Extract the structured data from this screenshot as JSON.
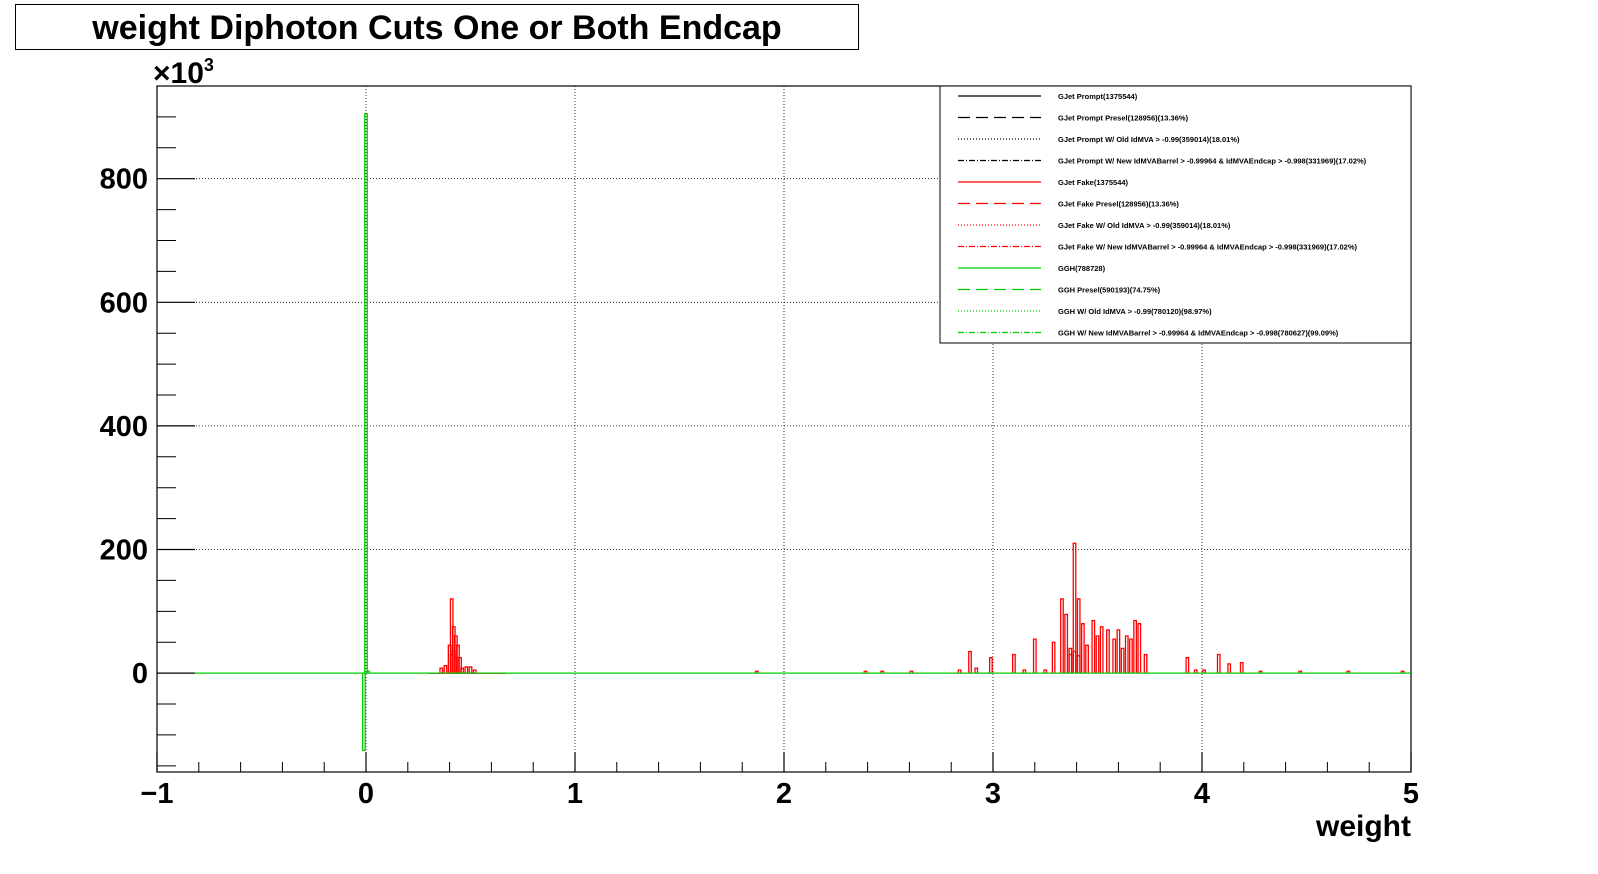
{
  "chart_data": {
    "type": "histogram",
    "title": "weight Diphoton Cuts One or Both Endcap",
    "xlabel": "weight",
    "ylabel": "",
    "y_multiplier_label": "×10",
    "y_multiplier_exponent": "3",
    "xlim": [
      -1,
      5
    ],
    "ylim": [
      -160,
      950
    ],
    "x_ticks": [
      -1,
      0,
      1,
      2,
      3,
      4,
      5
    ],
    "x_tick_labels": [
      "−1",
      "0",
      "1",
      "2",
      "3",
      "4",
      "5"
    ],
    "y_ticks": [
      0,
      200,
      400,
      600,
      800
    ],
    "y_tick_labels": [
      "0",
      "200",
      "400",
      "600",
      "800"
    ],
    "grid": true,
    "legend_position": "top-right",
    "legend": [
      {
        "label": "GJet Prompt(1375544)",
        "color": "#000000",
        "style": "solid"
      },
      {
        "label": "GJet Prompt Presel(128956)(13.36%)",
        "color": "#000000",
        "style": "dashed"
      },
      {
        "label": "GJet Prompt W/ Old IdMVA > -0.99(359014)(18.01%)",
        "color": "#000000",
        "style": "dotted"
      },
      {
        "label": "GJet Prompt W/ New IdMVABarrel > -0.99964 & IdMVAEndcap > -0.998(331969)(17.02%)",
        "color": "#000000",
        "style": "dashdot"
      },
      {
        "label": "GJet Fake(1375544)",
        "color": "#ff0000",
        "style": "solid"
      },
      {
        "label": "GJet Fake Presel(128956)(13.36%)",
        "color": "#ff0000",
        "style": "dashed"
      },
      {
        "label": "GJet Fake W/ Old IdMVA > -0.99(359014)(18.01%)",
        "color": "#ff0000",
        "style": "dotted"
      },
      {
        "label": "GJet Fake W/ New IdMVABarrel > -0.99964 & IdMVAEndcap > -0.998(331969)(17.02%)",
        "color": "#ff0000",
        "style": "dashdot"
      },
      {
        "label": "GGH(788728)",
        "color": "#00cc00",
        "style": "solid"
      },
      {
        "label": "GGH Presel(590193)(74.75%)",
        "color": "#00cc00",
        "style": "dashed"
      },
      {
        "label": "GGH W/ Old IdMVA > -0.99(780120)(98.97%)",
        "color": "#00cc00",
        "style": "dotted"
      },
      {
        "label": "GGH W/ New IdMVABarrel > -0.99964 & IdMVAEndcap > -0.998(780627)(99.09%)",
        "color": "#00cc00",
        "style": "dashdot"
      }
    ],
    "series": [
      {
        "name": "GJet Fake(1375544)",
        "color": "#ff0000",
        "points": [
          [
            0.36,
            8
          ],
          [
            0.38,
            12
          ],
          [
            0.4,
            45
          ],
          [
            0.41,
            120
          ],
          [
            0.42,
            75
          ],
          [
            0.43,
            60
          ],
          [
            0.44,
            45
          ],
          [
            0.45,
            25
          ],
          [
            0.46,
            8
          ],
          [
            0.48,
            10
          ],
          [
            0.5,
            10
          ],
          [
            0.52,
            5
          ],
          [
            1.87,
            3
          ],
          [
            2.39,
            3
          ],
          [
            2.47,
            3
          ],
          [
            2.61,
            3
          ],
          [
            2.84,
            5
          ],
          [
            2.89,
            35
          ],
          [
            2.92,
            8
          ],
          [
            2.99,
            25
          ],
          [
            3.1,
            30
          ],
          [
            3.15,
            5
          ],
          [
            3.2,
            55
          ],
          [
            3.25,
            5
          ],
          [
            3.29,
            50
          ],
          [
            3.33,
            120
          ],
          [
            3.35,
            95
          ],
          [
            3.37,
            40
          ],
          [
            3.39,
            210
          ],
          [
            3.41,
            120
          ],
          [
            3.43,
            80
          ],
          [
            3.45,
            45
          ],
          [
            3.48,
            85
          ],
          [
            3.5,
            60
          ],
          [
            3.52,
            75
          ],
          [
            3.55,
            70
          ],
          [
            3.58,
            55
          ],
          [
            3.6,
            70
          ],
          [
            3.62,
            40
          ],
          [
            3.64,
            60
          ],
          [
            3.66,
            55
          ],
          [
            3.68,
            85
          ],
          [
            3.7,
            80
          ],
          [
            3.73,
            30
          ],
          [
            3.93,
            25
          ],
          [
            3.97,
            5
          ],
          [
            4.01,
            5
          ],
          [
            4.08,
            30
          ],
          [
            4.13,
            15
          ],
          [
            4.19,
            17
          ],
          [
            4.28,
            3
          ],
          [
            4.47,
            3
          ],
          [
            4.7,
            3
          ],
          [
            4.96,
            3
          ]
        ]
      },
      {
        "name": "GJet Fake Presel(128956)(13.36%)",
        "color": "#ff0000",
        "points": [
          [
            0.41,
            30
          ],
          [
            0.42,
            35
          ],
          [
            0.43,
            25
          ],
          [
            3.37,
            30
          ],
          [
            3.39,
            35
          ],
          [
            3.41,
            28
          ]
        ]
      },
      {
        "name": "GGH(788728)",
        "color": "#00cc00",
        "points": [
          [
            -0.01,
            -125
          ],
          [
            0.0,
            905
          ],
          [
            0.01,
            3
          ]
        ]
      }
    ]
  }
}
